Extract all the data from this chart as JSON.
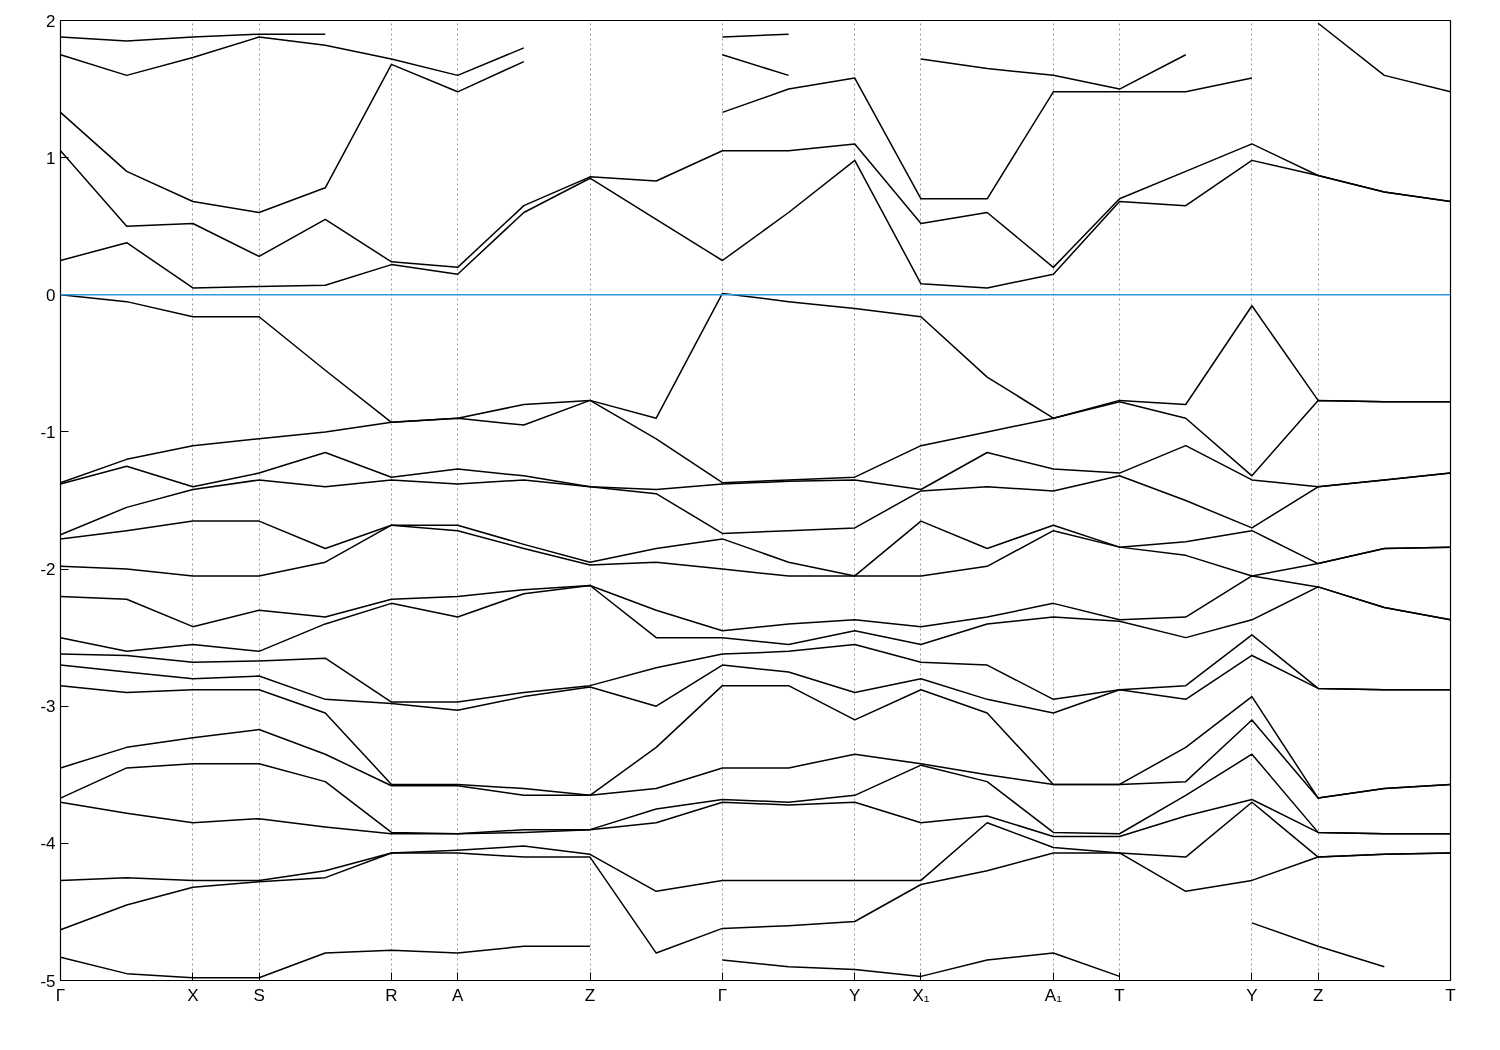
{
  "chart_data": {
    "type": "line",
    "categories": [
      "Γ",
      null,
      "X",
      "S",
      null,
      "R",
      "A",
      null,
      "Z",
      null,
      "Γ",
      null,
      "Y",
      "X₁",
      null,
      "A₁",
      "T",
      null,
      "Y",
      "Z",
      null,
      "T"
    ],
    "ylim": [
      -5,
      2
    ],
    "yticks": [
      -5,
      -4,
      -3,
      -2,
      -1,
      0,
      1,
      2
    ],
    "grid": "x",
    "line_style": "solid",
    "marker": "none",
    "ref_lines": [
      {
        "axis": "y",
        "value": 0,
        "color": "#3399dd"
      }
    ],
    "series": [
      {
        "color": "#000000",
        "values": [
          0.0,
          -0.05,
          -0.16,
          -0.16,
          -0.55,
          -0.93,
          -0.9,
          -0.8,
          -0.77,
          -0.9,
          0.01,
          -0.05,
          -0.1,
          -0.16,
          -0.6,
          -0.9,
          -0.77,
          -0.8,
          -0.08,
          -0.77,
          -0.78,
          -0.78
        ]
      },
      {
        "color": "#000000",
        "values": [
          -1.37,
          -1.2,
          -1.1,
          -1.05,
          -1.0,
          -0.93,
          -0.9,
          -0.95,
          -0.77,
          -1.05,
          -1.37,
          -1.35,
          -1.33,
          -1.1,
          -1.0,
          -0.9,
          -0.78,
          -0.9,
          -1.32,
          -0.77,
          -0.78,
          -0.78
        ]
      },
      {
        "color": "#000000",
        "values": [
          -1.38,
          -1.25,
          -1.4,
          -1.3,
          -1.15,
          -1.33,
          -1.27,
          -1.32,
          -1.4,
          -1.42,
          -1.38,
          -1.36,
          -1.35,
          -1.42,
          -1.15,
          -1.27,
          -1.3,
          -1.1,
          -1.35,
          -1.4,
          -1.35,
          -1.3
        ]
      },
      {
        "color": "#000000",
        "values": [
          -1.75,
          -1.55,
          -1.42,
          -1.35,
          -1.4,
          -1.35,
          -1.38,
          -1.35,
          -1.4,
          -1.45,
          -1.74,
          -1.72,
          -1.7,
          -1.43,
          -1.4,
          -1.43,
          -1.32,
          -1.5,
          -1.7,
          -1.4,
          -1.35,
          -1.3
        ]
      },
      {
        "color": "#000000",
        "values": [
          -1.78,
          -1.72,
          -1.65,
          -1.65,
          -1.85,
          -1.68,
          -1.68,
          -1.82,
          -1.95,
          -1.85,
          -1.78,
          -1.95,
          -2.05,
          -1.65,
          -1.85,
          -1.68,
          -1.84,
          -1.8,
          -1.72,
          -1.96,
          -1.85,
          -1.84
        ]
      },
      {
        "color": "#000000",
        "values": [
          -1.98,
          -2.0,
          -2.05,
          -2.05,
          -1.95,
          -1.68,
          -1.72,
          -1.85,
          -1.97,
          -1.95,
          -2.0,
          -2.05,
          -2.05,
          -2.05,
          -1.98,
          -1.72,
          -1.84,
          -1.9,
          -2.05,
          -1.96,
          -1.85,
          -1.84
        ]
      },
      {
        "color": "#000000",
        "values": [
          -2.2,
          -2.22,
          -2.42,
          -2.3,
          -2.35,
          -2.22,
          -2.2,
          -2.15,
          -2.12,
          -2.3,
          -2.45,
          -2.4,
          -2.37,
          -2.42,
          -2.35,
          -2.25,
          -2.37,
          -2.35,
          -2.05,
          -2.13,
          -2.28,
          -2.37
        ]
      },
      {
        "color": "#000000",
        "values": [
          -2.5,
          -2.6,
          -2.55,
          -2.6,
          -2.4,
          -2.25,
          -2.35,
          -2.18,
          -2.12,
          -2.5,
          -2.5,
          -2.55,
          -2.45,
          -2.55,
          -2.4,
          -2.35,
          -2.38,
          -2.5,
          -2.37,
          -2.13,
          -2.28,
          -2.37
        ]
      },
      {
        "color": "#000000",
        "values": [
          -2.62,
          -2.63,
          -2.68,
          -2.67,
          -2.65,
          -2.97,
          -2.97,
          -2.9,
          -2.85,
          -2.72,
          -2.62,
          -2.6,
          -2.55,
          -2.68,
          -2.7,
          -2.95,
          -2.88,
          -2.85,
          -2.48,
          -2.87,
          -2.88,
          -2.88
        ]
      },
      {
        "color": "#000000",
        "values": [
          -2.7,
          -2.75,
          -2.8,
          -2.78,
          -2.95,
          -2.98,
          -3.03,
          -2.93,
          -2.86,
          -3.0,
          -2.7,
          -2.75,
          -2.9,
          -2.8,
          -2.95,
          -3.05,
          -2.88,
          -2.95,
          -2.63,
          -2.87,
          -2.88,
          -2.88
        ]
      },
      {
        "color": "#000000",
        "values": [
          -2.85,
          -2.9,
          -2.88,
          -2.88,
          -3.05,
          -3.57,
          -3.57,
          -3.6,
          -3.65,
          -3.3,
          -2.85,
          -2.85,
          -3.1,
          -2.88,
          -3.05,
          -3.57,
          -3.57,
          -3.3,
          -2.93,
          -3.67,
          -3.6,
          -3.57
        ]
      },
      {
        "color": "#000000",
        "values": [
          -3.45,
          -3.3,
          -3.23,
          -3.17,
          -3.35,
          -3.58,
          -3.58,
          -3.65,
          -3.65,
          -3.6,
          -3.45,
          -3.45,
          -3.35,
          -3.42,
          -3.5,
          -3.57,
          -3.57,
          -3.55,
          -3.1,
          -3.67,
          -3.6,
          -3.57
        ]
      },
      {
        "color": "#000000",
        "values": [
          -3.67,
          -3.45,
          -3.42,
          -3.42,
          -3.55,
          -3.92,
          -3.93,
          -3.9,
          -3.9,
          -3.75,
          -3.68,
          -3.7,
          -3.65,
          -3.43,
          -3.55,
          -3.92,
          -3.93,
          -3.65,
          -3.35,
          -3.92,
          -3.93,
          -3.93
        ]
      },
      {
        "color": "#000000",
        "values": [
          -3.7,
          -3.78,
          -3.85,
          -3.82,
          -3.88,
          -3.93,
          -3.93,
          -3.92,
          -3.9,
          -3.85,
          -3.7,
          -3.72,
          -3.7,
          -3.85,
          -3.8,
          -3.95,
          -3.95,
          -3.8,
          -3.68,
          -3.92,
          -3.93,
          -3.93
        ]
      },
      {
        "color": "#000000",
        "values": [
          -4.27,
          -4.25,
          -4.27,
          -4.27,
          -4.2,
          -4.07,
          -4.05,
          -4.02,
          -4.08,
          -4.35,
          -4.27,
          -4.27,
          -4.27,
          -4.27,
          -3.85,
          -4.03,
          -4.07,
          -4.1,
          -3.7,
          -4.1,
          -4.08,
          -4.07
        ]
      },
      {
        "color": "#000000",
        "values": [
          -4.63,
          -4.45,
          -4.32,
          -4.28,
          -4.25,
          -4.07,
          -4.07,
          -4.1,
          -4.1,
          -4.8,
          -4.62,
          -4.6,
          -4.57,
          -4.3,
          -4.2,
          -4.07,
          -4.07,
          -4.35,
          -4.27,
          -4.1,
          -4.08,
          -4.07
        ]
      },
      {
        "color": "#000000",
        "values": [
          -4.83,
          -4.95,
          -4.98,
          -4.98,
          -4.8,
          -4.78,
          -4.8,
          -4.75,
          -4.75,
          null,
          -4.85,
          -4.9,
          -4.92,
          -4.97,
          -4.85,
          -4.8,
          -4.97,
          null,
          -4.58,
          -4.75,
          -4.9,
          null
        ]
      },
      {
        "color": "#000000",
        "values": [
          0.25,
          0.38,
          0.05,
          0.06,
          0.07,
          0.22,
          0.15,
          0.6,
          0.85,
          0.55,
          0.25,
          0.6,
          0.98,
          0.08,
          0.05,
          0.15,
          0.68,
          0.65,
          0.98,
          0.87,
          0.75,
          0.68
        ]
      },
      {
        "color": "#000000",
        "values": [
          1.05,
          0.5,
          0.52,
          0.28,
          0.55,
          0.24,
          0.2,
          0.65,
          0.86,
          0.83,
          1.05,
          1.05,
          1.1,
          0.52,
          0.6,
          0.2,
          0.7,
          0.9,
          1.1,
          0.87,
          0.75,
          0.68
        ]
      },
      {
        "color": "#000000",
        "values": [
          1.33,
          0.9,
          0.68,
          0.6,
          0.78,
          1.68,
          1.48,
          1.7,
          null,
          null,
          1.33,
          1.5,
          1.58,
          0.7,
          0.7,
          1.48,
          1.48,
          1.48,
          1.58,
          null,
          null,
          null
        ]
      },
      {
        "color": "#000000",
        "values": [
          1.75,
          1.6,
          1.73,
          1.88,
          1.82,
          1.72,
          1.6,
          1.8,
          null,
          null,
          1.75,
          1.6,
          null,
          1.72,
          1.65,
          1.6,
          1.5,
          1.75,
          null,
          1.98,
          1.6,
          1.48
        ]
      },
      {
        "color": "#000000",
        "values": [
          1.88,
          1.85,
          1.88,
          1.9,
          1.9,
          null,
          null,
          null,
          null,
          null,
          1.88,
          1.9,
          null,
          null,
          null,
          null,
          null,
          null,
          null,
          null,
          null,
          null
        ]
      }
    ]
  }
}
